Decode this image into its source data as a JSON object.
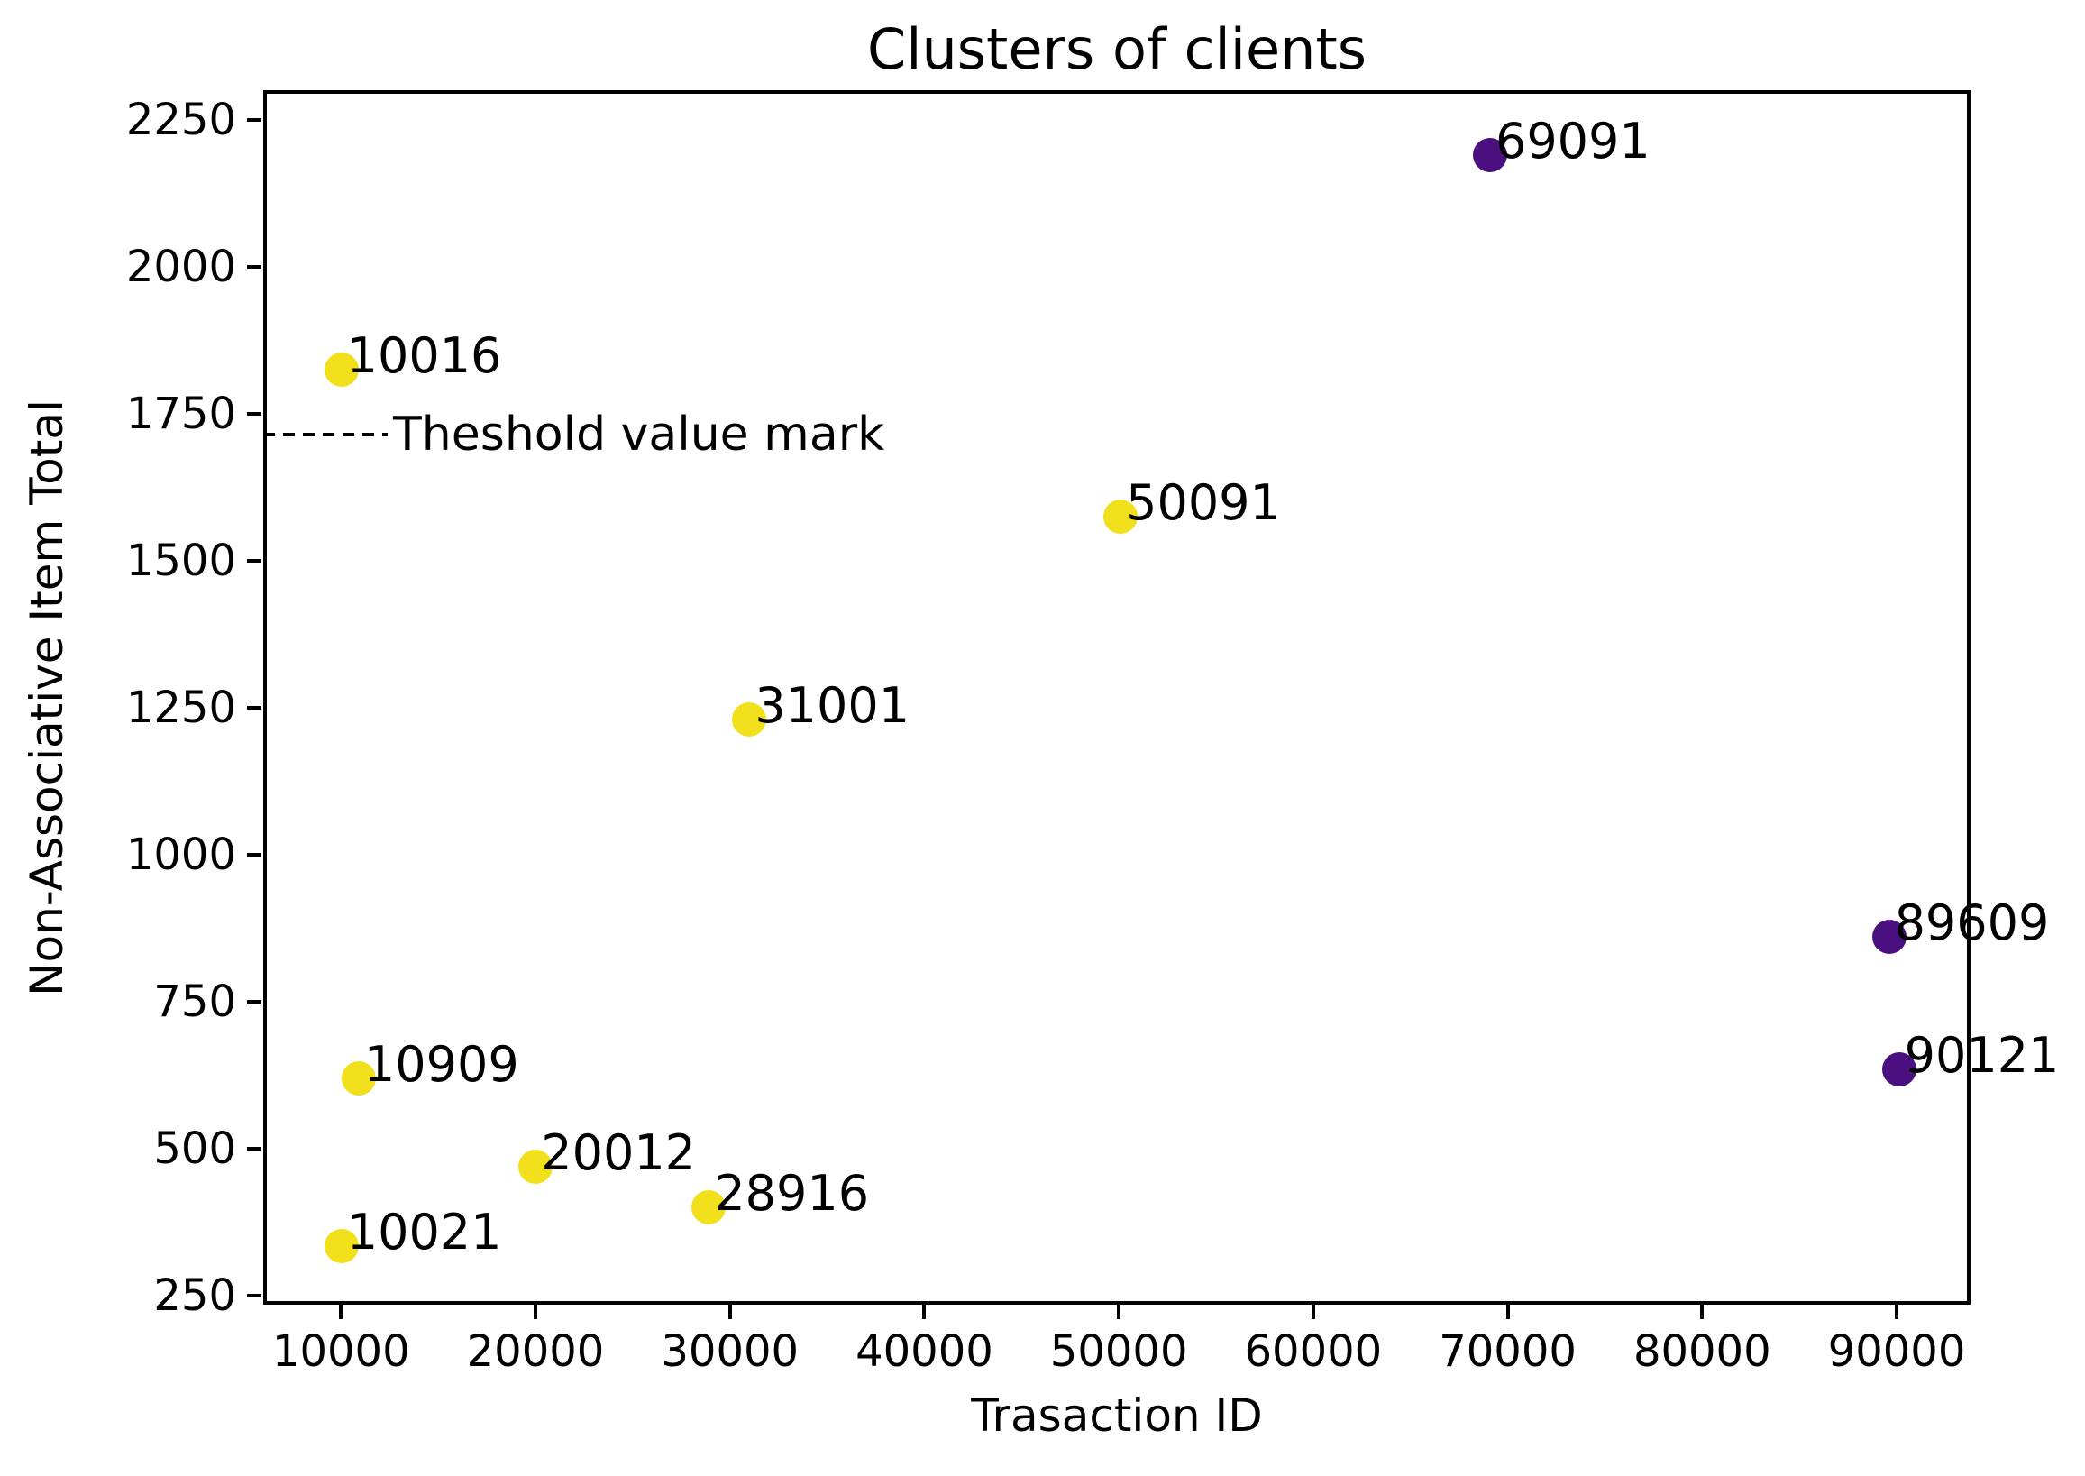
{
  "figure": {
    "title": "Clusters of clients",
    "xlabel": "Trasaction ID",
    "ylabel": "Non-Associative Item Total"
  },
  "chart_data": {
    "type": "scatter",
    "title": "Clusters of clients",
    "xlabel": "Trasaction ID",
    "ylabel": "Non-Associative Item Total",
    "xlim": [
      6000,
      93800
    ],
    "ylim": [
      235,
      2300
    ],
    "x_ticks": [
      10000,
      20000,
      30000,
      40000,
      50000,
      60000,
      70000,
      80000,
      90000
    ],
    "y_ticks": [
      250,
      500,
      750,
      1000,
      1250,
      1500,
      1750,
      2000,
      2250
    ],
    "grid": false,
    "legend": null,
    "point_labels_visible": true,
    "series": [
      {
        "name": "cluster-yellow",
        "color": "#f2e01d",
        "points": [
          {
            "label": "10016",
            "x": 10016,
            "y": 1825
          },
          {
            "label": "10021",
            "x": 10021,
            "y": 335
          },
          {
            "label": "10909",
            "x": 10909,
            "y": 620
          },
          {
            "label": "20012",
            "x": 20012,
            "y": 470
          },
          {
            "label": "28916",
            "x": 28916,
            "y": 400
          },
          {
            "label": "31001",
            "x": 31001,
            "y": 1230
          },
          {
            "label": "50091",
            "x": 50091,
            "y": 1575
          }
        ]
      },
      {
        "name": "cluster-purple",
        "color": "#4b1080",
        "points": [
          {
            "label": "69091",
            "x": 69091,
            "y": 2190
          },
          {
            "label": "89609",
            "x": 89609,
            "y": 860
          },
          {
            "label": "90121",
            "x": 90121,
            "y": 635
          }
        ]
      }
    ],
    "threshold": {
      "label": "Theshold value mark",
      "y": 1715,
      "line_start_x": 6000,
      "line_end_x": 12400
    }
  }
}
